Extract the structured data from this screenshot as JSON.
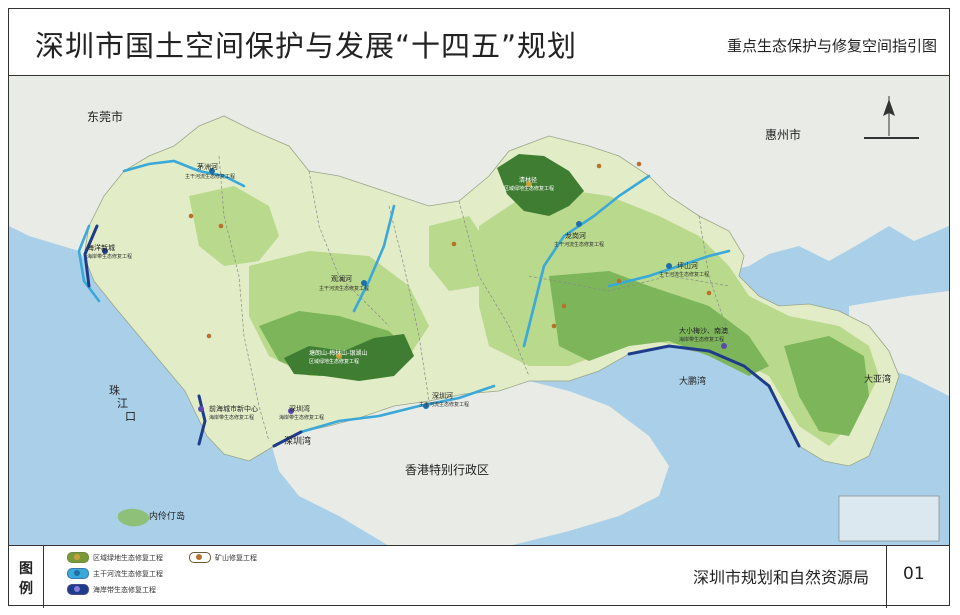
{
  "header": {
    "title": "深圳市国土空间保护与发展“十四五”规划",
    "subtitle": "重点生态保护与修复空间指引图"
  },
  "colors": {
    "sea": "#a9d0e8",
    "outside_land": "#e9ece6",
    "shenzhen_land": "#e2ecc6",
    "green_light": "#b9d98c",
    "green_mid": "#7cb55a",
    "green_dark": "#3f7d32",
    "river": "#3aa8d8",
    "coast": "#1e3c8c",
    "district_boundary": "#8a8a8a"
  },
  "map": {
    "region_labels": {
      "dongguan": "东莞市",
      "huizhou": "惠州市",
      "pearl_estuary_1": "珠",
      "pearl_estuary_2": "江",
      "pearl_estuary_3": "口",
      "hongkong": "香港特别行政区",
      "shenzhen_bay": "深圳湾",
      "dapeng_bay": "大鹏湾",
      "daya_bay": "大亚湾",
      "neilingding": "内伶仃岛"
    },
    "project_labels": {
      "maozhou_river": "茅洲河",
      "maozhou_sub": "主干河流生态修复工程",
      "haiyang_wetland": "海洋新城",
      "haiyang_sub": "海岸带生态修复工程",
      "guanlan_river": "观澜河",
      "guanlan_sub": "主干河流生态修复工程",
      "longgang_river": "龙岗河",
      "longgang_sub": "主干河流生态修复工程",
      "pingshan_river": "坪山河",
      "pingshan_sub": "主干河流生态修复工程",
      "shenzhen_river": "深圳河",
      "shenzhen_river_sub": "主干河流生态修复工程",
      "qianhai": "前海城市新中心",
      "qianhai_sub": "海岸带生态修复工程",
      "shenzhen_bay_proj": "深圳湾",
      "shenzhen_bay_sub": "海岸带生态修复工程",
      "dameisha": "大小梅沙、南澳",
      "dameisha_sub": "海岸带生态修复工程",
      "yangtai": "塘朗山-梅林山-银湖山",
      "yangtai_sub": "区域绿地生态修复工程",
      "qinglin": "清林径",
      "qinglin_sub": "区域绿地生态修复工程"
    }
  },
  "legend": {
    "title_1": "图",
    "title_2": "例",
    "items": [
      {
        "label": "区域绿地生态修复工程",
        "border": "#6a8a3a",
        "fill": "#c9a13a"
      },
      {
        "label": "矿山修复工程",
        "border": "#6a5a3a",
        "fill": "#b7712a"
      },
      {
        "label": "主干河流生态修复工程",
        "border": "#3a7ab0",
        "fill": "#3aa8d8"
      },
      {
        "label": "海岸带生态修复工程",
        "border": "#4a4a8a",
        "fill": "#8a7ad8"
      }
    ]
  },
  "footer": {
    "agency": "深圳市规划和自然资源局",
    "page_number": "01"
  }
}
